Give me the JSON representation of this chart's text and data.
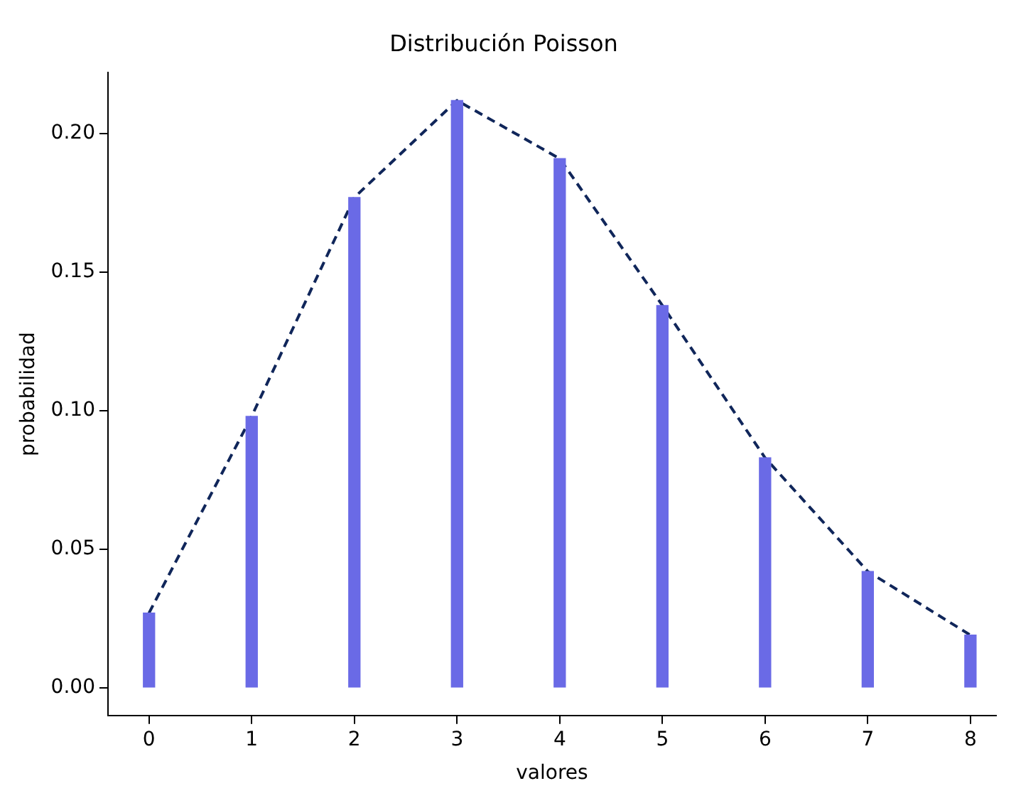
{
  "chart_data": {
    "type": "bar",
    "title": "Distribución Poisson",
    "xlabel": "valores",
    "ylabel": "probabilidad",
    "x": [
      0,
      1,
      2,
      3,
      4,
      5,
      6,
      7,
      8
    ],
    "series": [
      {
        "color": "#6a6ae6",
        "values": [
          0.027,
          0.098,
          0.177,
          0.212,
          0.191,
          0.138,
          0.083,
          0.042,
          0.019
        ]
      },
      {
        "type": "line",
        "color": "#10265a",
        "values": [
          0.027,
          0.098,
          0.177,
          0.212,
          0.191,
          0.138,
          0.083,
          0.042,
          0.019
        ]
      }
    ],
    "xlim": [
      -0.4,
      8.25
    ],
    "xticks": [
      0,
      1,
      2,
      3,
      4,
      5,
      6,
      7,
      8
    ],
    "ylim": [
      -0.01,
      0.222
    ],
    "yticks": [
      {
        "value": 0,
        "label": "0.00"
      },
      {
        "value": 0.05,
        "label": "0.05"
      },
      {
        "value": 0.1,
        "label": "0.10"
      },
      {
        "value": 0.15,
        "label": "0.15"
      },
      {
        "value": 0.2,
        "label": "0.20"
      }
    ],
    "grid": false,
    "legend": false,
    "marker": "none",
    "line_style": "dashed"
  }
}
